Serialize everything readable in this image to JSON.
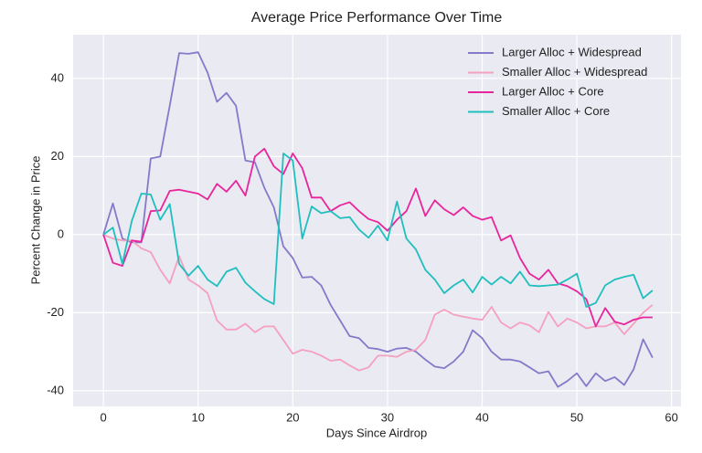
{
  "chart_data": {
    "type": "line",
    "title": "Average Price Performance Over Time",
    "xlabel": "Days Since Airdrop",
    "ylabel": "Percent Change in Price",
    "x": [
      0,
      1,
      2,
      3,
      4,
      5,
      6,
      7,
      8,
      9,
      10,
      11,
      12,
      13,
      14,
      15,
      16,
      17,
      18,
      19,
      20,
      21,
      22,
      23,
      24,
      25,
      26,
      27,
      28,
      29,
      30,
      31,
      32,
      33,
      34,
      35,
      36,
      37,
      38,
      39,
      40,
      41,
      42,
      43,
      44,
      45,
      46,
      47,
      48,
      49,
      50,
      51,
      52,
      53,
      54,
      55,
      56,
      57,
      58
    ],
    "series": [
      {
        "name": "Larger Alloc + Widespread",
        "color": "#8579c9",
        "values": [
          0,
          8,
          -1,
          -2,
          -2,
          19.5,
          20,
          33,
          46.5,
          46.3,
          46.7,
          41.5,
          34,
          36.3,
          33,
          19,
          18.5,
          12,
          7,
          -3,
          -6,
          -11,
          -10.8,
          -13,
          -18,
          -22,
          -26,
          -26.5,
          -29,
          -29.3,
          -30,
          -29.2,
          -29,
          -30,
          -32,
          -33.8,
          -34.2,
          -32.5,
          -30,
          -24.5,
          -26.5,
          -30,
          -32,
          -32,
          -32.5,
          -34,
          -35.5,
          -35,
          -39,
          -37.5,
          -35.5,
          -38.8,
          -35.5,
          -37.5,
          -36.5,
          -38.5,
          -34.5,
          -26.8,
          -31.5
        ]
      },
      {
        "name": "Smaller Alloc + Widespread",
        "color": "#f4a0be",
        "values": [
          0,
          -1,
          -1.5,
          -1.5,
          -3.5,
          -4.5,
          -9,
          -12.5,
          -5.5,
          -11.5,
          -13,
          -15,
          -22,
          -24.3,
          -24.3,
          -22.8,
          -25,
          -23.5,
          -23.5,
          -27,
          -30.5,
          -29.5,
          -30,
          -31,
          -32.3,
          -32,
          -33.5,
          -34.8,
          -34,
          -31,
          -31,
          -31.3,
          -30,
          -29.5,
          -27,
          -20.5,
          -19.2,
          -20.5,
          -21,
          -21.5,
          -21.8,
          -18.5,
          -22.5,
          -24,
          -22.5,
          -23.2,
          -25,
          -19.8,
          -23.5,
          -21.5,
          -22.5,
          -24,
          -23.5,
          -23.5,
          -22.5,
          -25.5,
          -22.8,
          -20,
          -18
        ]
      },
      {
        "name": "Larger Alloc + Core",
        "color": "#e8259c",
        "values": [
          0,
          -7.2,
          -8,
          -1.5,
          -1.8,
          6,
          6.2,
          11.2,
          11.5,
          11,
          10.5,
          9,
          13,
          11,
          13.8,
          10,
          20,
          22,
          17.5,
          15.5,
          20.8,
          17,
          9.5,
          9.5,
          6,
          7.5,
          8.3,
          6,
          4,
          3.2,
          1,
          3.8,
          6,
          11.8,
          4.8,
          8.8,
          6.5,
          5,
          7,
          4.8,
          3.8,
          4.5,
          -1.5,
          -0.2,
          -6,
          -10,
          -11.5,
          -9,
          -12.5,
          -13.2,
          -14.5,
          -16.5,
          -23.5,
          -18.8,
          -22.3,
          -23,
          -21.8,
          -21.2,
          -21.2
        ]
      },
      {
        "name": "Smaller Alloc + Core",
        "color": "#1fbfbf",
        "values": [
          0,
          1.8,
          -7.5,
          3.5,
          10.5,
          10.3,
          3.8,
          7.8,
          -7.5,
          -10.5,
          -8,
          -11.5,
          -13.2,
          -9.5,
          -8.5,
          -12.3,
          -14.5,
          -16.5,
          -17.8,
          20.8,
          19,
          -1,
          7.2,
          5.5,
          6,
          4.2,
          4.5,
          1.3,
          -0.8,
          2.3,
          -1.5,
          8.5,
          -1,
          -3.8,
          -9,
          -11.5,
          -15,
          -13,
          -11.5,
          -14.8,
          -10.8,
          -12.8,
          -10.8,
          -12.5,
          -9.5,
          -13,
          -13.2,
          -13,
          -12.8,
          -11.5,
          -10,
          -18.5,
          -17.5,
          -13,
          -11.5,
          -10.8,
          -10.3,
          -16.3,
          -14.3
        ]
      }
    ],
    "xlim": [
      -3.2,
      61
    ],
    "ylim": [
      -44,
      51.2
    ],
    "xticks": [
      0,
      10,
      20,
      30,
      40,
      50,
      60
    ],
    "yticks": [
      -40,
      -20,
      0,
      20,
      40
    ],
    "grid": true,
    "legend": "upper right"
  }
}
